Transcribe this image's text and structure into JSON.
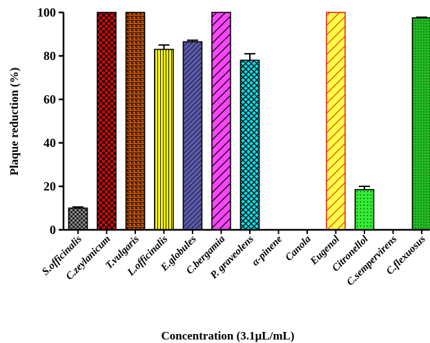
{
  "chart_data": {
    "type": "bar",
    "title": "",
    "xlabel": "Concentration (3.1µL/mL)",
    "ylabel": "Plaque reduction (%)",
    "ylim": [
      0,
      100
    ],
    "yticks": [
      "0",
      "20",
      "40",
      "60",
      "80",
      "100"
    ],
    "grid": false,
    "legend": "none",
    "categories": [
      "S.officinalis",
      "C.zeylanicum",
      "T.vulgaris",
      "L.officinalis",
      "E.globules",
      "C.bergamia",
      "P. graveolens",
      "α-pinene",
      "Canola",
      "Eugenol",
      "Citronellol",
      "C.sempervirens",
      "C.flexuosus"
    ],
    "values": [
      10,
      100,
      100,
      83,
      86.5,
      100,
      78,
      0,
      0,
      100,
      18.5,
      0,
      97.5
    ],
    "errors": [
      0.5,
      0,
      0,
      2,
      0.7,
      0,
      3,
      0,
      0,
      0,
      1.5,
      0,
      0.3
    ],
    "colors": [
      "#555555",
      "#e00000",
      "#ff6a00",
      "#ffff00",
      "#4b4b9c",
      "#ff44ff",
      "#00e5ee",
      "#ffffff",
      "#ffffff",
      "#ffff44",
      "#33ee33",
      "#ffffff",
      "#22bb22"
    ],
    "patterns": [
      "checker-dark",
      "checker",
      "brick",
      "vertical",
      "diag-dense",
      "diag",
      "crosshatch",
      "none",
      "none",
      "diag-red",
      "dots",
      "none",
      "dots"
    ]
  }
}
